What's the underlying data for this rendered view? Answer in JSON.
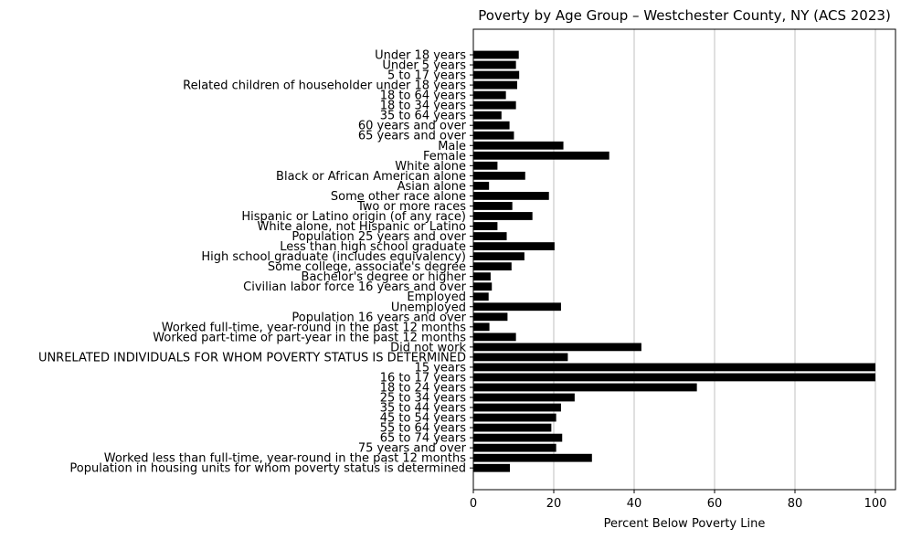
{
  "chart_data": {
    "type": "bar",
    "orientation": "horizontal",
    "title": "Poverty by Age Group – Westchester County, NY (ACS 2023)",
    "xlabel": "Percent Below Poverty Line",
    "ylabel": "",
    "xlim": [
      0,
      105
    ],
    "xticks": [
      0,
      20,
      40,
      60,
      80,
      100
    ],
    "grid": "x",
    "bar_color": "#000000",
    "categories": [
      "Under 18 years",
      "Under 5 years",
      "5 to 17 years",
      "Related children of householder under 18 years",
      "18 to 64 years",
      "18 to 34 years",
      "35 to 64 years",
      "60 years and over",
      "65 years and over",
      "Male",
      "Female",
      "White alone",
      "Black or African American alone",
      "Asian alone",
      "Some other race alone",
      "Two or more races",
      "Hispanic or Latino origin (of any race)",
      "White alone, not Hispanic or Latino",
      "Population 25 years and over",
      "Less than high school graduate",
      "High school graduate (includes equivalency)",
      "Some college, associate's degree",
      "Bachelor's degree or higher",
      "Civilian labor force 16 years and over",
      "Employed",
      "Unemployed",
      "Population 16 years and over",
      "Worked full-time, year-round in the past 12 months",
      "Worked part-time or part-year in the past 12 months",
      "Did not work",
      "UNRELATED INDIVIDUALS FOR WHOM POVERTY STATUS IS DETERMINED",
      "15 years",
      "16 to 17 years",
      "18 to 24 years",
      "25 to 34 years",
      "35 to 44 years",
      "45 to 54 years",
      "55 to 64 years",
      "65 to 74 years",
      "75 years and over",
      "Worked less than full-time, year-round in the past 12 months",
      "Population in housing units for whom poverty status is determined"
    ],
    "values": [
      11.3,
      10.6,
      11.4,
      10.9,
      8.1,
      10.6,
      7.0,
      9.0,
      10.1,
      22.4,
      33.8,
      6.0,
      12.9,
      3.9,
      18.8,
      9.7,
      14.7,
      6.0,
      8.3,
      20.2,
      12.7,
      9.5,
      4.3,
      4.6,
      3.8,
      21.8,
      8.5,
      4.0,
      10.6,
      41.8,
      23.5,
      100.0,
      100.0,
      55.6,
      25.2,
      21.8,
      20.6,
      19.4,
      22.1,
      20.6,
      29.5,
      9.1
    ]
  }
}
